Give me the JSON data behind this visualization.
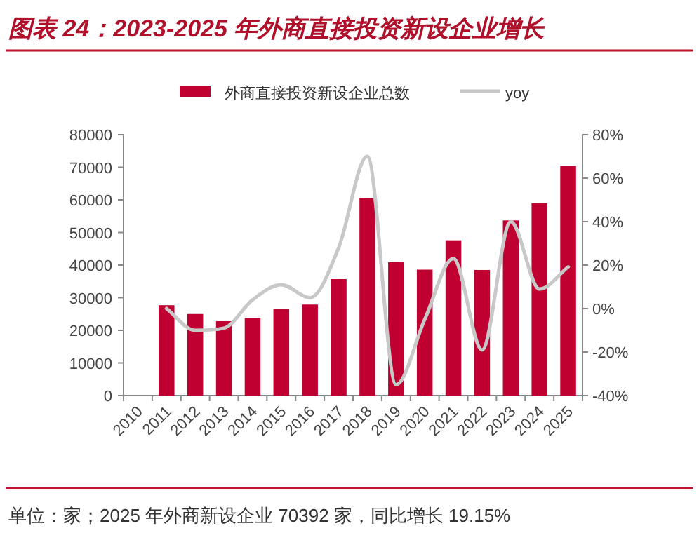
{
  "chart_data": {
    "type": "bar",
    "title": "图表 24：2023-2025 年外商直接投资新设企业增长",
    "categories": [
      "2010",
      "2011",
      "2012",
      "2013",
      "2014",
      "2015",
      "2016",
      "2017",
      "2018",
      "2019",
      "2020",
      "2021",
      "2022",
      "2023",
      "2024",
      "2025"
    ],
    "series": [
      {
        "name": "外商直接投资新设企业总数",
        "color": "#c00030",
        "values": [
          null,
          27700,
          25000,
          22800,
          23800,
          26600,
          27900,
          35700,
          60500,
          40900,
          38600,
          47600,
          38500,
          53700,
          59000,
          70392
        ]
      },
      {
        "name": "yoy",
        "type": "line",
        "axis": "y2",
        "color": "#c8c8c8",
        "values": [
          null,
          0,
          -10,
          -9,
          4,
          11,
          5,
          28,
          70,
          -35,
          -5,
          23,
          -19,
          40,
          9,
          19.15
        ]
      }
    ],
    "ylim": [
      0,
      80000
    ],
    "yticks": [
      0,
      10000,
      20000,
      30000,
      40000,
      50000,
      60000,
      70000,
      80000
    ],
    "y2lim": [
      -40,
      80
    ],
    "y2ticks": [
      {
        "value": -40,
        "label": "-40%"
      },
      {
        "value": -20,
        "label": "-20%"
      },
      {
        "value": 0,
        "label": "0%"
      },
      {
        "value": 20,
        "label": "20%"
      },
      {
        "value": 40,
        "label": "40%"
      },
      {
        "value": 60,
        "label": "60%"
      },
      {
        "value": 80,
        "label": "80%"
      }
    ],
    "legend": "top",
    "annotations": [
      "单位：家；2025 年外商新设企业 70392 家，同比增长 19.15%"
    ]
  }
}
